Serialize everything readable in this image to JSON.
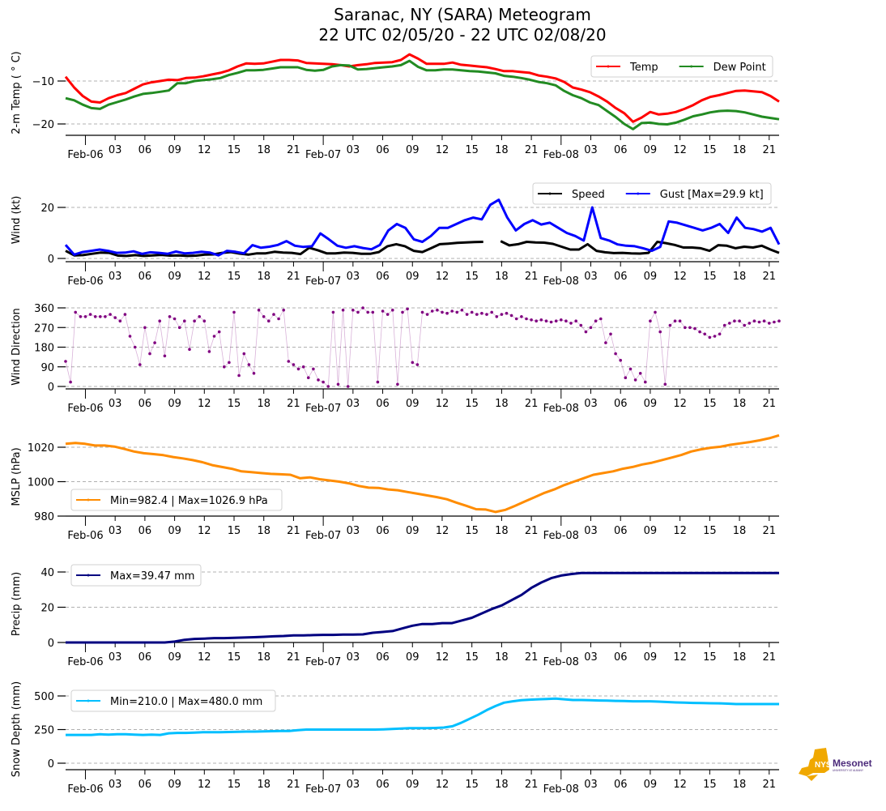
{
  "title": {
    "line1": "Saranac, NY (SARA) Meteogram",
    "line2": "22 UTC 02/05/20 - 22 UTC 02/08/20"
  },
  "logo": {
    "text_main": "NYS",
    "text_brand": "Mesonet",
    "text_sub": "UNIVERSITY AT ALBANY",
    "color_state": "#F0A800",
    "color_brand": "#4B2A7A"
  },
  "x_axis": {
    "start_hour_utc": 22,
    "hours_total": 72,
    "tick_labels": [
      "Feb-06",
      "03",
      "06",
      "09",
      "12",
      "15",
      "18",
      "21",
      "Feb-07",
      "03",
      "06",
      "09",
      "12",
      "15",
      "18",
      "21",
      "Feb-08",
      "03",
      "06",
      "09",
      "12",
      "15",
      "18",
      "21"
    ]
  },
  "chart_data": [
    {
      "type": "line",
      "id": "temp",
      "ylabel": "2-m Temp ( ° C)",
      "ylim": [
        -22.5,
        -3
      ],
      "yticks": [
        -10,
        -20
      ],
      "ytick_labels": [
        "−10",
        "−20"
      ],
      "grid": true,
      "legend_placement": "top-right",
      "legend_columns": 2,
      "x_hours_from_start": [
        0,
        1,
        2,
        3,
        4,
        5,
        6,
        7,
        8,
        9,
        10,
        11,
        12,
        13,
        14,
        15,
        16,
        17,
        18,
        19,
        20,
        21,
        22,
        23,
        24,
        25,
        26,
        27,
        28,
        29,
        30,
        31,
        32,
        33,
        34,
        35,
        36,
        37,
        38,
        39,
        40,
        41,
        42,
        43,
        44,
        45,
        46,
        47,
        48,
        49,
        50,
        51,
        52,
        53,
        54,
        55,
        56,
        57,
        58,
        59,
        60,
        61,
        62,
        63,
        64,
        65,
        66,
        67,
        68,
        69,
        70,
        71,
        72
      ],
      "series": [
        {
          "name": "Temp",
          "color": "#FF0000",
          "values": [
            -9,
            -11.5,
            -13.5,
            -14.8,
            -15,
            -14,
            -13.3,
            -12.8,
            -11.8,
            -10.8,
            -10.3,
            -10,
            -9.7,
            -9.8,
            -9.3,
            -9.2,
            -8.9,
            -8.5,
            -8.1,
            -7.5,
            -6.6,
            -5.9,
            -6,
            -5.9,
            -5.5,
            -5.1,
            -5.1,
            -5.2,
            -5.8,
            -5.9,
            -6,
            -6.1,
            -6.3,
            -6.6,
            -6.3,
            -6.1,
            -5.8,
            -5.7,
            -5.6,
            -5.1,
            -3.8,
            -4.8,
            -6,
            -6,
            -6,
            -5.7,
            -6.2,
            -6.4,
            -6.6,
            -6.8,
            -7.2,
            -7.7,
            -7.7,
            -7.9,
            -8.1,
            -8.7,
            -9,
            -9.4,
            -10.2,
            -11.5,
            -12,
            -12.6,
            -13.6,
            -14.8,
            -16.3,
            -17.5,
            -19.5,
            -18.5,
            -17.2,
            -17.8,
            -17.6,
            -17.2,
            -16.5,
            -15.6,
            -14.5,
            -13.7,
            -13.3,
            -12.8,
            -12.3,
            -12.2,
            -12.4,
            -12.6,
            -13.5,
            -14.8
          ]
        },
        {
          "name": "Dew Point",
          "color": "#228B22",
          "values": [
            -14,
            -14.5,
            -15.5,
            -16.3,
            -16.5,
            -15.5,
            -14.9,
            -14.3,
            -13.6,
            -13,
            -12.8,
            -12.5,
            -12.2,
            -10.5,
            -10.5,
            -10,
            -9.8,
            -9.6,
            -9.3,
            -8.6,
            -8.1,
            -7.5,
            -7.5,
            -7.4,
            -7.1,
            -6.8,
            -6.8,
            -6.8,
            -7.4,
            -7.6,
            -7.4,
            -6.6,
            -6.3,
            -6.4,
            -7.3,
            -7.2,
            -7,
            -6.8,
            -6.6,
            -6.3,
            -5.3,
            -6.7,
            -7.5,
            -7.5,
            -7.3,
            -7.3,
            -7.5,
            -7.7,
            -7.8,
            -8,
            -8.2,
            -8.8,
            -9,
            -9.3,
            -9.7,
            -10.2,
            -10.5,
            -11,
            -12.3,
            -13.3,
            -14,
            -15,
            -15.6,
            -17,
            -18.4,
            -20,
            -21.2,
            -19.8,
            -19.7,
            -20,
            -20.1,
            -19.7,
            -19,
            -18.2,
            -17.8,
            -17.3,
            -17,
            -16.9,
            -17,
            -17.3,
            -17.8,
            -18.3,
            -18.6,
            -18.9
          ]
        }
      ]
    },
    {
      "type": "line",
      "id": "wind",
      "ylabel": "Wind (kt)",
      "ylim": [
        -1,
        31
      ],
      "yticks": [
        0,
        20
      ],
      "ytick_labels": [
        "0",
        "20"
      ],
      "grid": true,
      "legend_placement": "top-right",
      "legend_columns": 2,
      "series": [
        {
          "name": "Speed",
          "color": "#000000",
          "values": [
            3,
            1.2,
            1.3,
            1.8,
            2.3,
            2.2,
            1.1,
            1,
            1.3,
            1,
            1.2,
            1.4,
            1.1,
            1.2,
            1,
            1.1,
            1.5,
            1.6,
            2.2,
            2.5,
            1.9,
            1.5,
            2,
            2,
            2.6,
            2.3,
            2.2,
            1.7,
            4.2,
            3.2,
            2,
            2,
            2.3,
            2.2,
            1.8,
            1.8,
            2.5,
            4.8,
            5.6,
            4.8,
            3,
            2.5,
            4,
            5.6,
            5.8,
            6.1,
            6.3,
            6.4,
            6.5,
            null,
            6.8,
            5.1,
            5.6,
            6.5,
            6.3,
            6.2,
            5.7,
            4.6,
            3.5,
            3.5,
            5.6,
            3,
            2.4,
            2.1,
            2.2,
            2,
            1.9,
            2.2,
            6.5,
            6,
            5.3,
            4.3,
            4.3,
            4,
            3,
            5.2,
            5,
            4,
            4.6,
            4.3,
            5,
            3.5,
            2.2
          ]
        },
        {
          "name": "Gust [Max=29.9 kt]",
          "color": "#0000FF",
          "values": [
            5.3,
            1.5,
            2.5,
            3,
            3.5,
            3,
            2.2,
            2.3,
            2.8,
            1.8,
            2.4,
            2.2,
            1.8,
            2.7,
            2,
            2.2,
            2.6,
            2.3,
            1.2,
            3,
            2.6,
            2,
            5.2,
            4.2,
            4.6,
            5.3,
            6.8,
            5,
            4.5,
            4.8,
            9.8,
            7.5,
            5,
            4.2,
            4.8,
            4.1,
            3.6,
            5.3,
            11,
            13.5,
            12,
            7.5,
            6.5,
            8.8,
            12,
            12,
            13.5,
            15,
            16,
            15.3,
            21,
            23,
            16,
            11,
            13.5,
            15,
            13.3,
            14,
            12,
            10,
            8.8,
            7,
            20,
            8,
            7,
            5.5,
            5,
            4.8,
            4,
            3,
            4.5,
            14.5,
            14,
            13,
            12,
            11,
            12,
            13.5,
            10,
            16,
            12,
            11.5,
            10.5,
            12,
            5.5
          ]
        }
      ]
    },
    {
      "type": "scatter",
      "id": "wind_direction",
      "ylabel": "Wind Direction",
      "ylim": [
        -5,
        365
      ],
      "yticks": [
        0,
        90,
        180,
        270,
        360
      ],
      "ytick_labels": [
        "0",
        "90",
        "180",
        "270",
        "360"
      ],
      "grid": true,
      "series": [
        {
          "name": "Wind Direction",
          "color": "#800080",
          "values": [
            115,
            20,
            340,
            320,
            320,
            330,
            320,
            320,
            320,
            330,
            315,
            300,
            330,
            230,
            180,
            100,
            270,
            150,
            200,
            300,
            140,
            320,
            310,
            270,
            300,
            170,
            300,
            320,
            300,
            160,
            230,
            250,
            90,
            110,
            340,
            50,
            150,
            100,
            60,
            350,
            320,
            300,
            330,
            310,
            350,
            115,
            100,
            80,
            90,
            40,
            80,
            30,
            20,
            0,
            340,
            10,
            350,
            0,
            350,
            340,
            360,
            340,
            340,
            20,
            345,
            330,
            350,
            10,
            340,
            355,
            110,
            100,
            340,
            330,
            345,
            350,
            340,
            335,
            345,
            340,
            350,
            330,
            340,
            330,
            335,
            330,
            340,
            320,
            330,
            335,
            325,
            310,
            320,
            310,
            305,
            300,
            305,
            300,
            295,
            300,
            305,
            300,
            290,
            300,
            280,
            250,
            270,
            300,
            310,
            200,
            240,
            150,
            120,
            40,
            80,
            30,
            60,
            20,
            300,
            340,
            250,
            10,
            280,
            300,
            300,
            270,
            270,
            265,
            250,
            240,
            225,
            230,
            240,
            280,
            290,
            300,
            300,
            280,
            290,
            300,
            295,
            300,
            290,
            295,
            300
          ]
        }
      ]
    },
    {
      "type": "line",
      "id": "mslp",
      "ylabel": "MSLP (hPa)",
      "ylim": [
        980,
        1028
      ],
      "yticks": [
        980,
        1000,
        1020
      ],
      "ytick_labels": [
        "980",
        "1000",
        "1020"
      ],
      "grid": true,
      "legend_placement": "lower-left",
      "series": [
        {
          "name": "Min=982.4 | Max=1026.9 hPa",
          "color": "#FF8C00",
          "values": [
            1022,
            1022.5,
            1022,
            1021,
            1021,
            1020.4,
            1019,
            1017.5,
            1016.5,
            1016,
            1015.4,
            1014.3,
            1013.5,
            1012.5,
            1011.3,
            1009.6,
            1008.5,
            1007.5,
            1006,
            1005.5,
            1005,
            1004.5,
            1004.3,
            1004,
            1002,
            1002.5,
            1001.4,
            1000.7,
            1000,
            999,
            997.5,
            996.5,
            996.4,
            995.5,
            995,
            994,
            993,
            992,
            991,
            989.8,
            987.8,
            986,
            984,
            983.8,
            982.4,
            983.6,
            986,
            988.5,
            991,
            993.5,
            995.5,
            998,
            1000,
            1002,
            1004,
            1005,
            1006,
            1007.5,
            1008.5,
            1010,
            1011,
            1012.5,
            1014,
            1015.5,
            1017.5,
            1018.8,
            1019.7,
            1020.3,
            1021.4,
            1022.2,
            1023,
            1024,
            1025.2,
            1026.9
          ]
        }
      ]
    },
    {
      "type": "line",
      "id": "precip",
      "ylabel": "Precip (mm)",
      "ylim": [
        0,
        44
      ],
      "yticks": [
        0,
        20,
        40
      ],
      "ytick_labels": [
        "0",
        "20",
        "40"
      ],
      "grid": true,
      "legend_placement": "top-left",
      "series": [
        {
          "name": "Max=39.47 mm",
          "color": "#000080",
          "values": [
            0,
            0,
            0,
            0,
            0,
            0,
            0,
            0,
            0,
            0,
            0,
            0.5,
            1.5,
            2,
            2.2,
            2.5,
            2.5,
            2.6,
            2.8,
            3,
            3.2,
            3.5,
            3.7,
            4,
            4,
            4.2,
            4.3,
            4.3,
            4.5,
            4.5,
            4.6,
            5.5,
            6,
            6.5,
            8,
            9.5,
            10.5,
            10.5,
            11,
            11,
            12.5,
            14,
            16.5,
            19,
            21,
            24,
            27,
            31,
            34,
            36.5,
            38,
            38.8,
            39.4,
            39.47,
            39.47,
            39.47,
            39.47,
            39.47,
            39.47,
            39.47,
            39.47,
            39.47,
            39.47,
            39.47,
            39.47,
            39.47,
            39.47,
            39.47,
            39.47,
            39.47,
            39.47,
            39.47,
            39.47
          ]
        }
      ]
    },
    {
      "type": "line",
      "id": "snow_depth",
      "ylabel": "Snow Depth (mm)",
      "ylim": [
        -45,
        600
      ],
      "yticks": [
        0,
        250,
        500
      ],
      "ytick_labels": [
        "0",
        "250",
        "500"
      ],
      "grid": true,
      "legend_placement": "top-left",
      "series": [
        {
          "name": "Min=210.0 | Max=480.0 mm",
          "color": "#00BFFF",
          "values": [
            210,
            210,
            210,
            210,
            215,
            212,
            215,
            215,
            212,
            210,
            212,
            210,
            222,
            225,
            225,
            228,
            230,
            230,
            230,
            232,
            233,
            235,
            235,
            236,
            238,
            240,
            240,
            245,
            250,
            250,
            250,
            250,
            250,
            250,
            250,
            250,
            250,
            252,
            255,
            258,
            260,
            260,
            260,
            262,
            265,
            275,
            300,
            330,
            360,
            395,
            425,
            450,
            460,
            468,
            472,
            475,
            478,
            480,
            475,
            470,
            470,
            468,
            466,
            465,
            463,
            462,
            460,
            460,
            460,
            458,
            455,
            452,
            450,
            448,
            447,
            446,
            445,
            443,
            440,
            440,
            440,
            440,
            440,
            440
          ]
        }
      ]
    }
  ]
}
